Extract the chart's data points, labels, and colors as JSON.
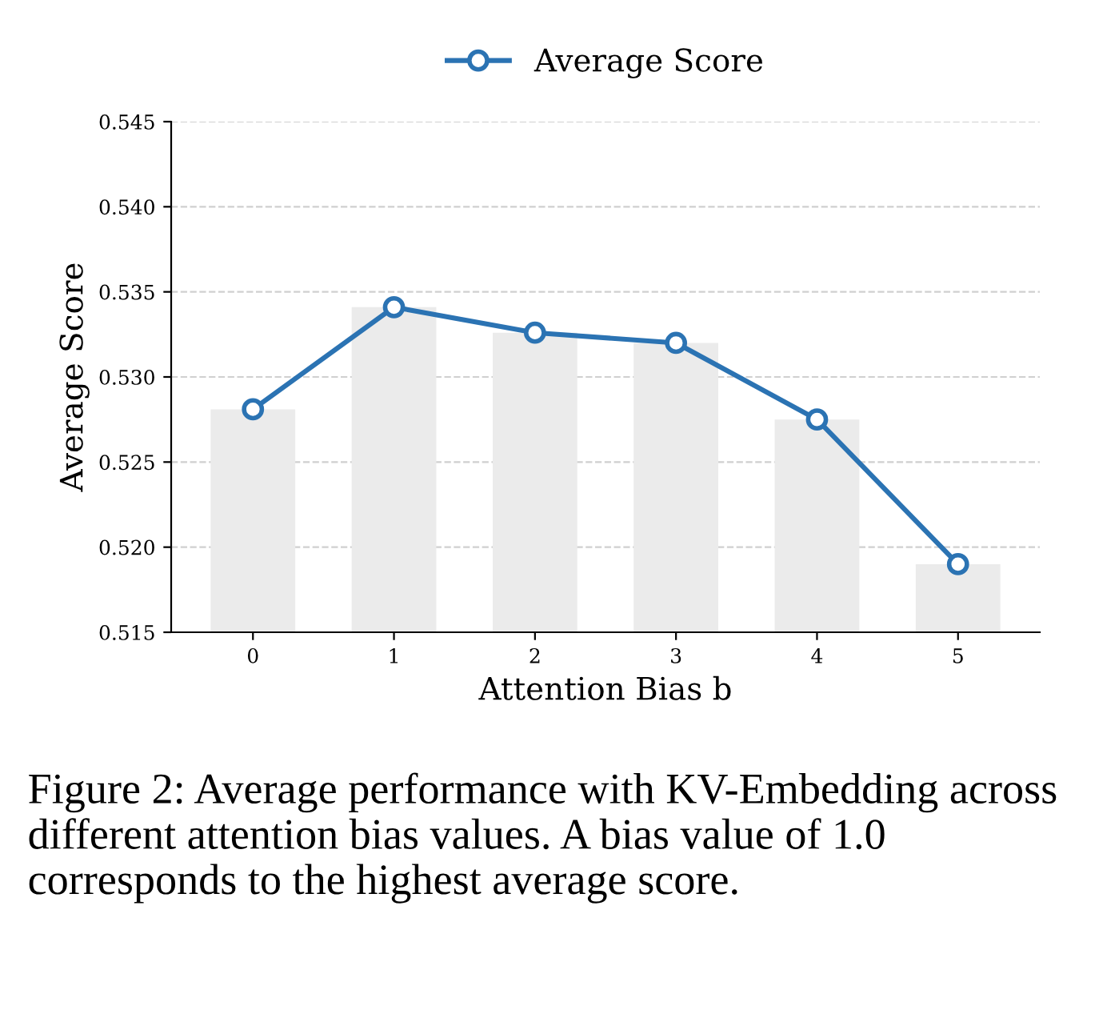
{
  "chart_data": {
    "type": "line",
    "categories": [
      "0",
      "1",
      "2",
      "3",
      "4",
      "5"
    ],
    "series": [
      {
        "type": "bar",
        "color": "#ebebeb",
        "values": [
          0.5281,
          0.5341,
          0.5326,
          0.532,
          0.5275,
          0.519
        ]
      },
      {
        "name": "Average Score",
        "color": "#2b73b3",
        "values": [
          0.5281,
          0.5341,
          0.5326,
          0.532,
          0.5275,
          0.519
        ]
      }
    ],
    "xlabel": "Attention Bias b",
    "ylabel": "Average Score",
    "ylim": [
      0.515,
      0.545
    ],
    "yticks": [
      0.515,
      {
        "value": 0.52,
        "label": "0.520"
      },
      0.525,
      {
        "value": 0.53,
        "label": "0.530"
      },
      0.535,
      {
        "value": 0.54,
        "label": "0.540"
      },
      0.545
    ],
    "grid": "y",
    "legend": "top",
    "marker": "circle",
    "line_style": "solid",
    "annotations": [
      "Figure 2: Average performance with KV-Embedding across different attention bias values. A bias value of 1.0 corresponds to the highest average score."
    ]
  }
}
